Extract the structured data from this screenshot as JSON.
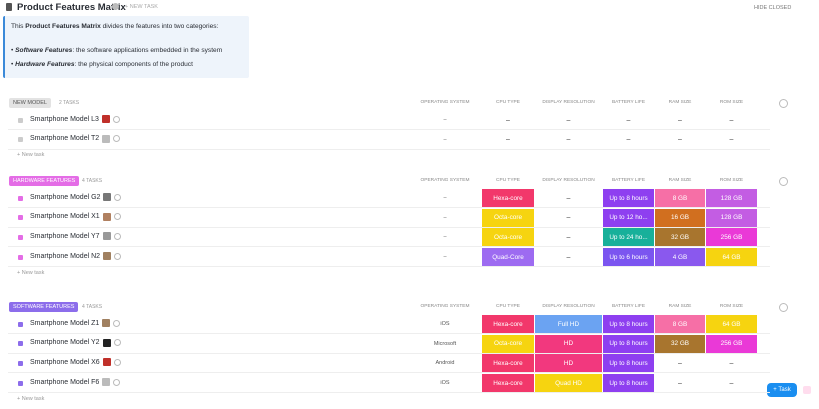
{
  "header": {
    "title": "Product Features Matrix",
    "new_task": "+ NEW TASK",
    "hide_closed": "HIDE CLOSED"
  },
  "description": {
    "intro_prefix": "This ",
    "intro_bold": "Product Features Matrix",
    "intro_suffix": " divides the features into two categories:",
    "bullets": [
      {
        "term": "Software Features",
        "text": ": the software applications embedded in the system"
      },
      {
        "term": "Hardware Features",
        "text": ": the physical components of the product"
      }
    ]
  },
  "groups": [
    {
      "name": "NEW MODEL",
      "count": "2 TASKS",
      "color": "#e3e3e3",
      "text_color": "#555555",
      "square": "#cccccc",
      "columns": [
        "OPERATING SYSTEM",
        "CPU TYPE",
        "DISPLAY RESOLUTION",
        "BATTERY LIFE",
        "RAM SIZE",
        "ROM SIZE"
      ],
      "rows": [
        {
          "name": "Smartphone Model L3",
          "cells": [
            {
              "text": "–",
              "color": null
            },
            {
              "text": "–",
              "color": null
            },
            {
              "text": "–",
              "color": null
            },
            {
              "text": "–",
              "color": null
            },
            {
              "text": "–",
              "color": null
            },
            {
              "text": "–",
              "color": null
            }
          ]
        },
        {
          "name": "Smartphone Model T2",
          "cells": [
            {
              "text": "–",
              "color": null
            },
            {
              "text": "–",
              "color": null
            },
            {
              "text": "–",
              "color": null
            },
            {
              "text": "–",
              "color": null
            },
            {
              "text": "–",
              "color": null
            },
            {
              "text": "–",
              "color": null
            }
          ]
        }
      ],
      "new_task": "+ New task"
    },
    {
      "name": "HARDWARE FEATURES",
      "count": "4 TASKS",
      "color": "#e46de6",
      "text_color": "#ffffff",
      "square": "#e46de6",
      "columns": [
        "OPERATING SYSTEM",
        "CPU TYPE",
        "DISPLAY RESOLUTION",
        "BATTERY LIFE",
        "RAM SIZE",
        "ROM SIZE"
      ],
      "rows": [
        {
          "name": "Smartphone Model G2",
          "cells": [
            {
              "text": "–",
              "color": null
            },
            {
              "text": "Hexa-core",
              "color": "#f2386b"
            },
            {
              "text": "–",
              "color": null
            },
            {
              "text": "Up to 8 hours",
              "color": "#8e3ff0"
            },
            {
              "text": "8 GB",
              "color": "#f66fa6"
            },
            {
              "text": "128 GB",
              "color": "#c35de3"
            }
          ]
        },
        {
          "name": "Smartphone Model X1",
          "cells": [
            {
              "text": "–",
              "color": null
            },
            {
              "text": "Octa-core",
              "color": "#f6d410"
            },
            {
              "text": "–",
              "color": null
            },
            {
              "text": "Up to 12 ho...",
              "color": "#8e3ff0"
            },
            {
              "text": "16 GB",
              "color": "#d16f1f"
            },
            {
              "text": "128 GB",
              "color": "#c35de3"
            }
          ]
        },
        {
          "name": "Smartphone Model Y7",
          "cells": [
            {
              "text": "–",
              "color": null
            },
            {
              "text": "Octa-core",
              "color": "#f6d410"
            },
            {
              "text": "–",
              "color": null
            },
            {
              "text": "Up to 24 ho...",
              "color": "#18b09a"
            },
            {
              "text": "32 GB",
              "color": "#a8752e"
            },
            {
              "text": "256 GB",
              "color": "#ea39d7"
            }
          ]
        },
        {
          "name": "Smartphone Model N2",
          "cells": [
            {
              "text": "–",
              "color": null
            },
            {
              "text": "Quad-Core",
              "color": "#9d6bf1"
            },
            {
              "text": "–",
              "color": null
            },
            {
              "text": "Up to 6 hours",
              "color": "#7b55f0"
            },
            {
              "text": "4 GB",
              "color": "#8a58ee"
            },
            {
              "text": "64 GB",
              "color": "#f6d410"
            }
          ]
        }
      ],
      "new_task": "+ New task"
    },
    {
      "name": "SOFTWARE FEATURES",
      "count": "4 TASKS",
      "color": "#8c6deb",
      "text_color": "#ffffff",
      "square": "#8c6deb",
      "columns": [
        "OPERATING SYSTEM",
        "CPU TYPE",
        "DISPLAY RESOLUTION",
        "BATTERY LIFE",
        "RAM SIZE",
        "ROM SIZE"
      ],
      "rows": [
        {
          "name": "Smartphone Model Z1",
          "cells": [
            {
              "text": "iOS",
              "color": null
            },
            {
              "text": "Hexa-core",
              "color": "#f2386b"
            },
            {
              "text": "Full HD",
              "color": "#6ba3f2"
            },
            {
              "text": "Up to 8 hours",
              "color": "#8e3ff0"
            },
            {
              "text": "8 GB",
              "color": "#f66fa6"
            },
            {
              "text": "64 GB",
              "color": "#f6d410"
            }
          ]
        },
        {
          "name": "Smartphone Model Y2",
          "cells": [
            {
              "text": "Microsoft",
              "color": null
            },
            {
              "text": "Octa-core",
              "color": "#f6d410"
            },
            {
              "text": "HD",
              "color": "#f2387e"
            },
            {
              "text": "Up to 8 hours",
              "color": "#8e3ff0"
            },
            {
              "text": "32 GB",
              "color": "#a8752e"
            },
            {
              "text": "256 GB",
              "color": "#ea39d7"
            }
          ]
        },
        {
          "name": "Smartphone Model X6",
          "cells": [
            {
              "text": "Android",
              "color": null
            },
            {
              "text": "Hexa-core",
              "color": "#f2386b"
            },
            {
              "text": "HD",
              "color": "#f2387e"
            },
            {
              "text": "Up to 8 hours",
              "color": "#8e3ff0"
            },
            {
              "text": "–",
              "color": null
            },
            {
              "text": "–",
              "color": null
            }
          ]
        },
        {
          "name": "Smartphone Model F6",
          "cells": [
            {
              "text": "iOS",
              "color": null
            },
            {
              "text": "Hexa-core",
              "color": "#f2386b"
            },
            {
              "text": "Quad HD",
              "color": "#f6d410"
            },
            {
              "text": "Up to 8 hours",
              "color": "#8e3ff0"
            },
            {
              "text": "–",
              "color": null
            },
            {
              "text": "–",
              "color": null
            }
          ]
        }
      ],
      "new_task": "+ New task"
    }
  ],
  "add_task": "+ Task"
}
